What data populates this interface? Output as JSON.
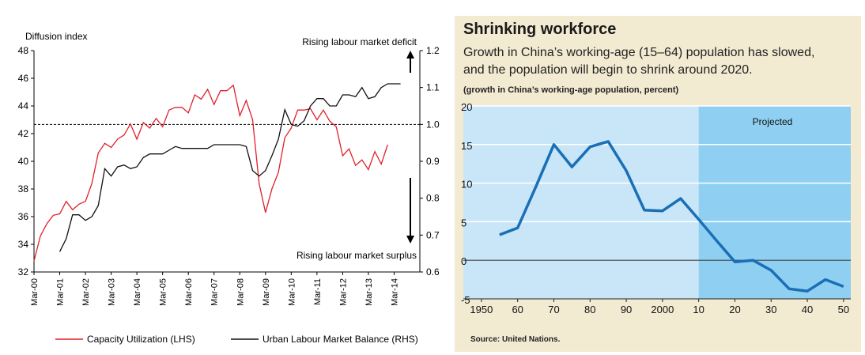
{
  "left": {
    "yleft_title": "Diffusion index",
    "annotation_top": "Rising labour market deficit",
    "annotation_bottom": "Rising labour market surplus",
    "legend": [
      "Capacity Utilization (LHS)",
      "Urban Labour Market Balance (RHS)"
    ],
    "colors": {
      "capacity": "#e0202a",
      "balance": "#111111"
    }
  },
  "right": {
    "title": "Shrinking workforce",
    "subtitle_line1": "Growth in China’s working-age (15–64) population has slowed,",
    "subtitle_line2": "and the population will begin to shrink around 2020.",
    "unit_note": "(growth in China’s working-age population, percent)",
    "projected_label": "Projected",
    "source": "Source: United Nations.",
    "colors": {
      "line": "#1a6fb5",
      "historic_bg": "#c8e6f8",
      "projected_bg": "#8fd0f2",
      "panel": "#f3ead2"
    }
  },
  "chart_data": [
    {
      "type": "line",
      "title": "",
      "ylabel": "Diffusion index",
      "ylim": [
        32,
        48
      ],
      "y2lim": [
        0.6,
        1.2
      ],
      "yticks": [
        32,
        34,
        36,
        38,
        40,
        42,
        44,
        46,
        48
      ],
      "y2ticks": [
        "0.6",
        "0.7",
        "0.8",
        "0.9",
        "1.0",
        "1.1",
        "1.2"
      ],
      "x_categories": [
        "Mar-00",
        "Mar-01",
        "Mar-02",
        "Mar-03",
        "Mar-04",
        "Mar-05",
        "Mar-06",
        "Mar-07",
        "Mar-08",
        "Mar-09",
        "Mar-10",
        "Mar-11",
        "Mar-12",
        "Mar-13",
        "Mar-14"
      ],
      "reference_line": 1.0,
      "series": [
        {
          "name": "Capacity Utilization (LHS)",
          "axis": "left",
          "x": [
            0,
            0.25,
            0.5,
            0.75,
            1,
            1.25,
            1.5,
            1.75,
            2,
            2.25,
            2.5,
            2.75,
            3,
            3.25,
            3.5,
            3.75,
            4,
            4.25,
            4.5,
            4.75,
            5,
            5.25,
            5.5,
            5.75,
            6,
            6.25,
            6.5,
            6.75,
            7,
            7.25,
            7.5,
            7.75,
            8,
            8.25,
            8.5,
            8.75,
            9,
            9.25,
            9.5,
            9.75,
            10,
            10.25,
            10.5,
            10.75,
            11,
            11.25,
            11.5,
            11.75,
            12,
            12.25,
            12.5,
            12.75,
            13,
            13.25,
            13.5,
            13.75
          ],
          "values": [
            32.8,
            34.6,
            35.5,
            36.1,
            36.2,
            37.1,
            36.5,
            36.9,
            37.1,
            38.4,
            40.6,
            41.3,
            41,
            41.6,
            41.9,
            42.7,
            41.6,
            42.8,
            42.4,
            43.1,
            42.5,
            43.7,
            43.9,
            43.9,
            43.5,
            44.8,
            44.5,
            45.2,
            44.1,
            45.1,
            45.1,
            45.5,
            43.3,
            44.4,
            43,
            38.4,
            36.3,
            38,
            39.2,
            41.7,
            42.4,
            43.7,
            43.7,
            43.8,
            43,
            43.7,
            42.9,
            42.5,
            40.4,
            40.9,
            39.7,
            40.1,
            39.4,
            40.7,
            39.8,
            41.2
          ]
        },
        {
          "name": "Urban Labour Market Balance (RHS)",
          "axis": "right",
          "x": [
            1,
            1.25,
            1.5,
            1.75,
            2,
            2.25,
            2.5,
            2.75,
            3,
            3.25,
            3.5,
            3.75,
            4,
            4.25,
            4.5,
            4.75,
            5,
            5.25,
            5.5,
            5.75,
            6,
            6.25,
            6.5,
            6.75,
            7,
            7.25,
            7.5,
            7.75,
            8,
            8.25,
            8.5,
            8.75,
            9,
            9.25,
            9.5,
            9.75,
            10,
            10.25,
            10.5,
            10.75,
            11,
            11.25,
            11.5,
            11.75,
            12,
            12.25,
            12.5,
            12.75,
            13,
            13.25,
            13.5,
            13.75,
            14,
            14.25
          ],
          "values": [
            0.655,
            0.69,
            0.755,
            0.755,
            0.74,
            0.75,
            0.78,
            0.88,
            0.86,
            0.885,
            0.89,
            0.88,
            0.885,
            0.91,
            0.92,
            0.92,
            0.92,
            0.93,
            0.94,
            0.935,
            0.935,
            0.935,
            0.935,
            0.935,
            0.945,
            0.945,
            0.945,
            0.945,
            0.945,
            0.94,
            0.875,
            0.86,
            0.875,
            0.915,
            0.96,
            1.04,
            1.0,
            0.995,
            1.01,
            1.05,
            1.07,
            1.07,
            1.05,
            1.05,
            1.08,
            1.08,
            1.075,
            1.1,
            1.07,
            1.075,
            1.1,
            1.11,
            1.11,
            1.11
          ]
        }
      ]
    },
    {
      "type": "line",
      "title": "Shrinking workforce",
      "ylabel": "growth in China’s working-age population, percent",
      "xlim": [
        1945,
        2052
      ],
      "ylim": [
        -5,
        20
      ],
      "yticks": [
        -5,
        0,
        5,
        10,
        15,
        20
      ],
      "xtick_values": [
        1950,
        1960,
        1970,
        1980,
        1990,
        2000,
        2010,
        2020,
        2030,
        2040,
        2050
      ],
      "xtick_labels": [
        "1950",
        "60",
        "70",
        "80",
        "90",
        "2000",
        "10",
        "20",
        "30",
        "40",
        "50"
      ],
      "projected_from": 2010,
      "series": [
        {
          "name": "",
          "x": [
            1955,
            1960,
            1965,
            1970,
            1975,
            1980,
            1985,
            1990,
            1995,
            2000,
            2005,
            2010,
            2015,
            2020,
            2025,
            2030,
            2035,
            2040,
            2045,
            2050
          ],
          "values": [
            3.3,
            4.2,
            9.5,
            15.0,
            12.1,
            14.7,
            15.4,
            11.6,
            6.5,
            6.4,
            8.0,
            5.3,
            2.5,
            -0.2,
            0.0,
            -1.3,
            -3.7,
            -4.0,
            -2.5,
            -3.4
          ]
        }
      ]
    }
  ]
}
